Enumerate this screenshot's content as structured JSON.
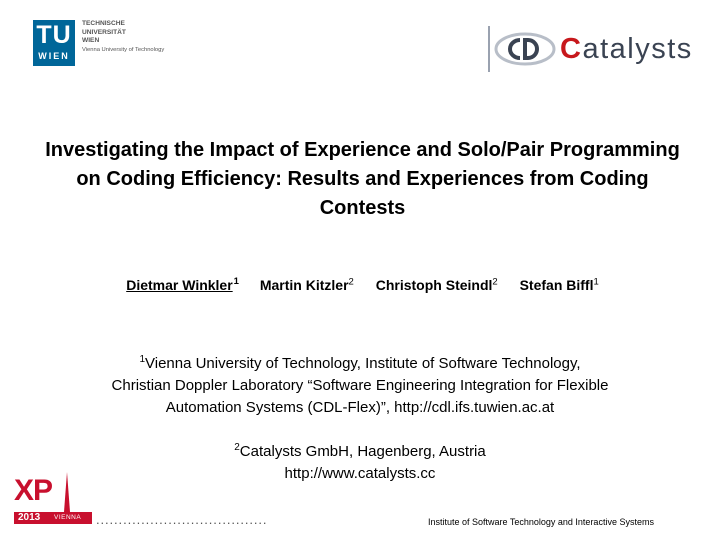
{
  "logos": {
    "tu_wien": {
      "letters": "TU",
      "wien": "WIEN",
      "lines": [
        "TECHNISCHE",
        "UNIVERSITÄT",
        "WIEN"
      ],
      "subline": "Vienna University of Technology",
      "color": "#006699"
    },
    "catalysts": {
      "first_letter": "C",
      "rest": "atalysts",
      "accent_color": "#c7181c",
      "text_color": "#3a4352"
    },
    "xp": {
      "text": "XP",
      "year": "2013",
      "city": "VIENNA",
      "color": "#c8102e"
    }
  },
  "title": "Investigating the Impact of Experience and Solo/Pair Programming on Coding Efficiency: Results and Experiences from Coding Contests",
  "authors": [
    {
      "name": "Dietmar Winkler",
      "affil": "1"
    },
    {
      "name": "Martin Kitzler",
      "affil": "2"
    },
    {
      "name": "Christoph Steindl",
      "affil": "2"
    },
    {
      "name": "Stefan Biffl",
      "affil": "1"
    }
  ],
  "affiliations": [
    {
      "mark": "1",
      "line1": "Vienna University of Technology, Institute of Software Technology,",
      "line2": "Christian Doppler Laboratory “Software Engineering Integration for Flexible",
      "line3": "Automation Systems (CDL-Flex)”, http://cdl.ifs.tuwien.ac.at"
    },
    {
      "mark": "2",
      "line1": "Catalysts GmbH, Hagenberg, Austria",
      "line2": "http://www.catalysts.cc"
    }
  ],
  "footer": {
    "dots": "......................................",
    "institute": "Institute of Software Technology and Interactive Systems"
  }
}
